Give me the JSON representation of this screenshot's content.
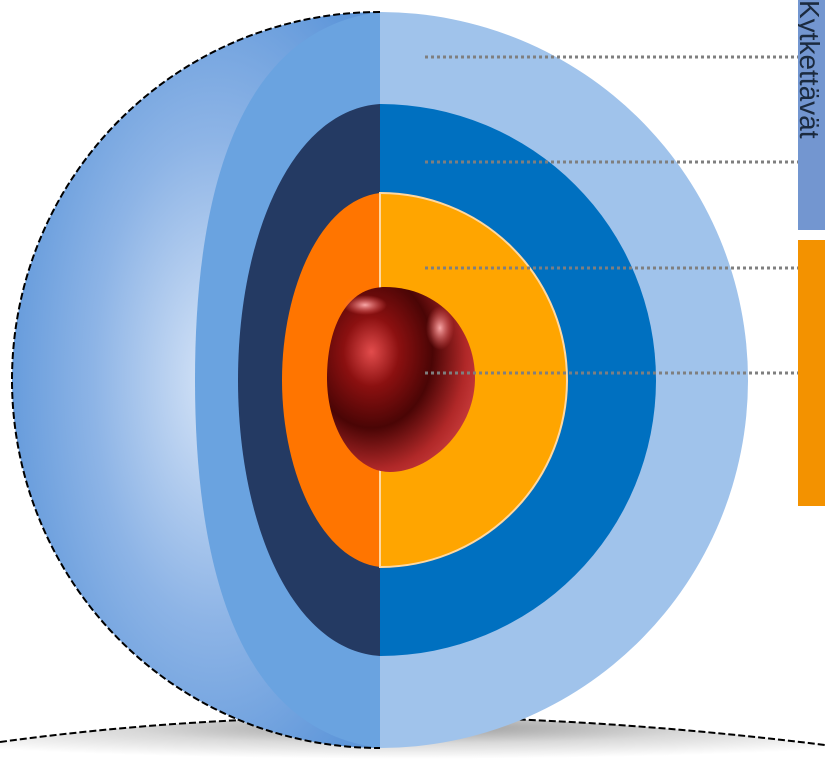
{
  "diagram": {
    "layers": [
      {
        "id": "outer-shell",
        "color_front": "#A0C3EB",
        "color_side": "#6AA3E0"
      },
      {
        "id": "second-shell",
        "color_front": "#0070C0",
        "color_side": "#243A63"
      },
      {
        "id": "third-shell",
        "color_front": "#FFA500",
        "color_side": "#FF7500"
      },
      {
        "id": "core",
        "color": "#8B1A1A"
      }
    ],
    "leader_color": "#7F7F7F",
    "panels": [
      {
        "id": "blue-panel",
        "color": "#7396D0",
        "label": "Kytkettävät"
      },
      {
        "id": "orange-panel",
        "color": "#F39200",
        "label": ""
      }
    ]
  }
}
